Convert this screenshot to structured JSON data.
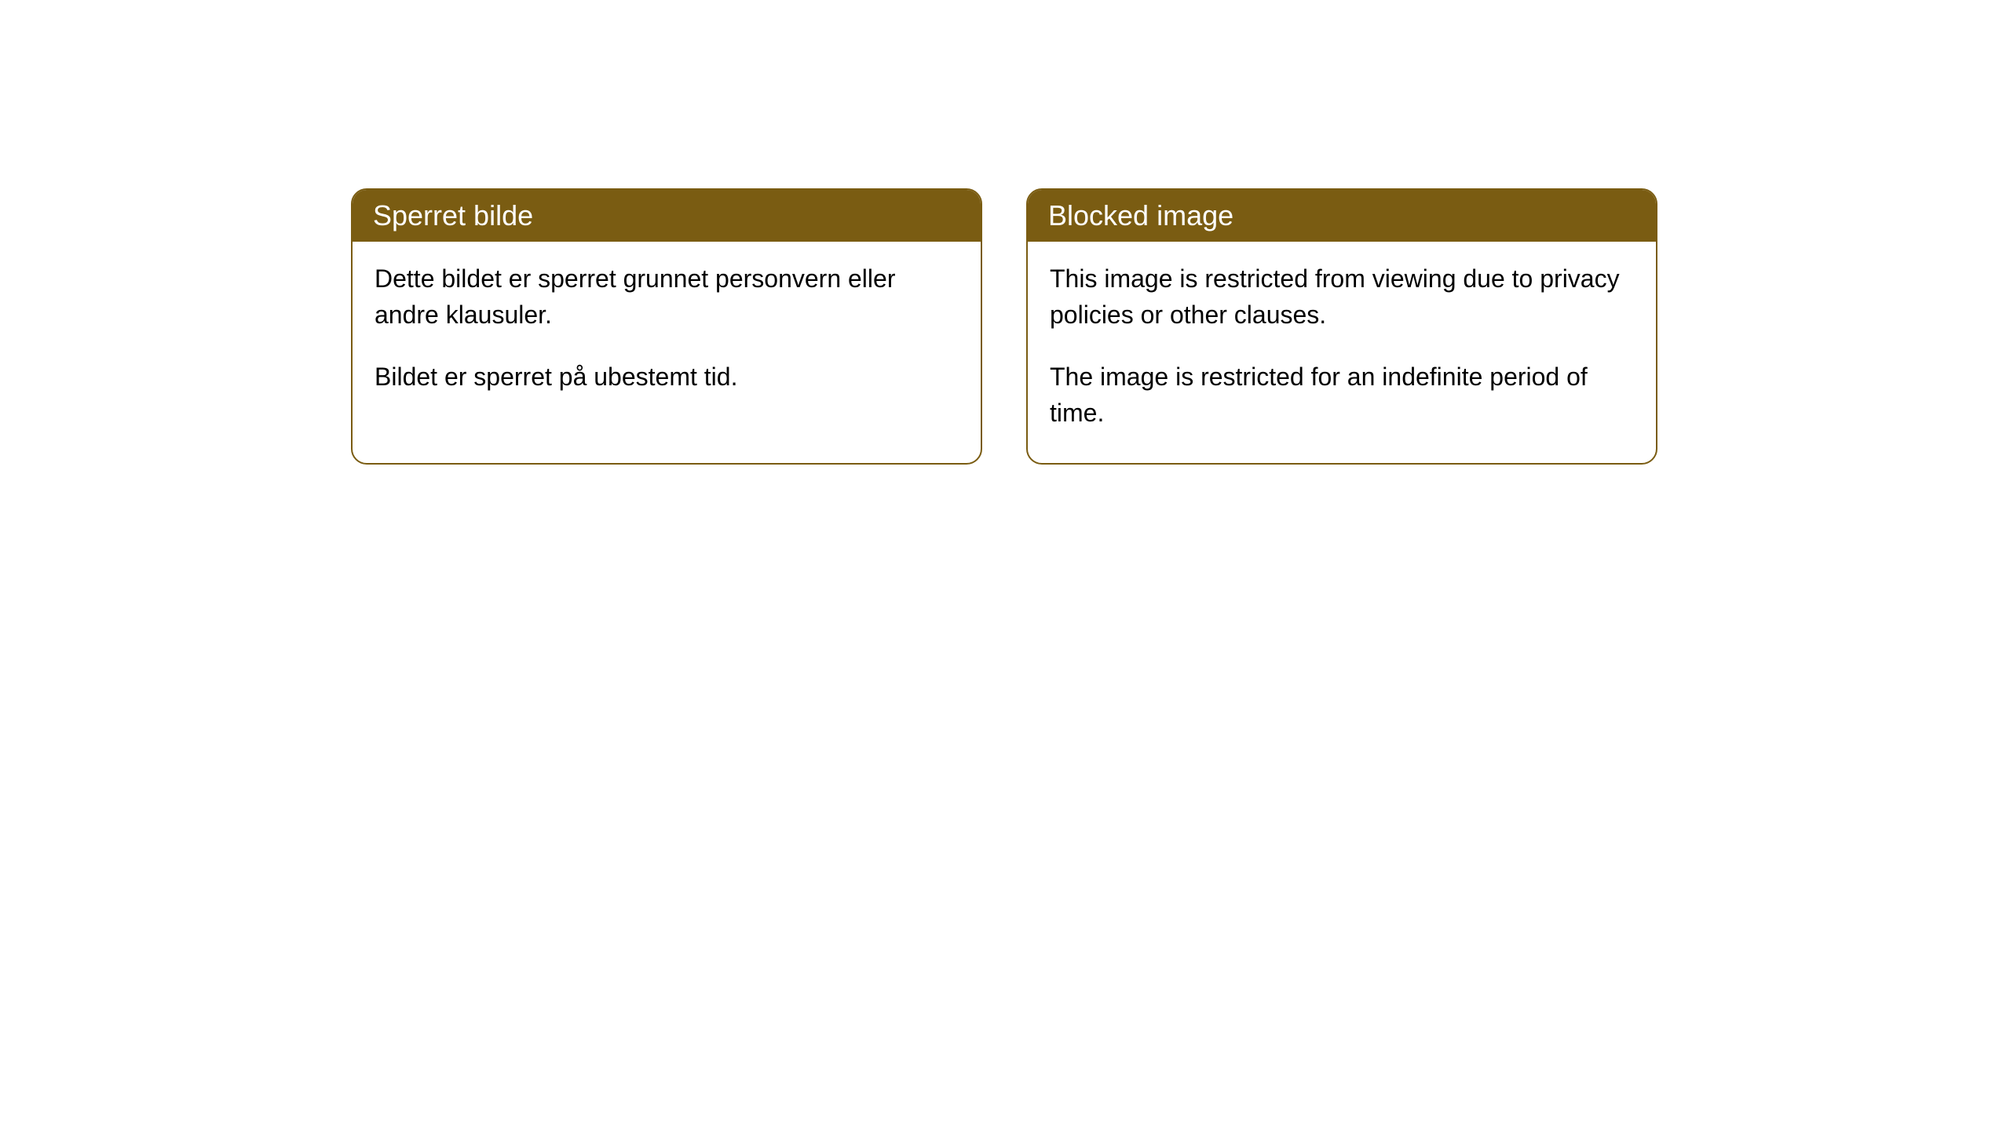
{
  "cards": [
    {
      "title": "Sperret bilde",
      "paragraph1": "Dette bildet er sperret grunnet personvern eller andre klausuler.",
      "paragraph2": "Bildet er sperret på ubestemt tid."
    },
    {
      "title": "Blocked image",
      "paragraph1": "This image is restricted from viewing due to privacy policies or other clauses.",
      "paragraph2": "The image is restricted for an indefinite period of time."
    }
  ],
  "styling": {
    "header_background": "#7a5c12",
    "header_text_color": "#ffffff",
    "border_color": "#7a5c12",
    "body_background": "#ffffff",
    "body_text_color": "#000000",
    "border_radius": 20,
    "header_fontsize": 36,
    "body_fontsize": 32
  }
}
